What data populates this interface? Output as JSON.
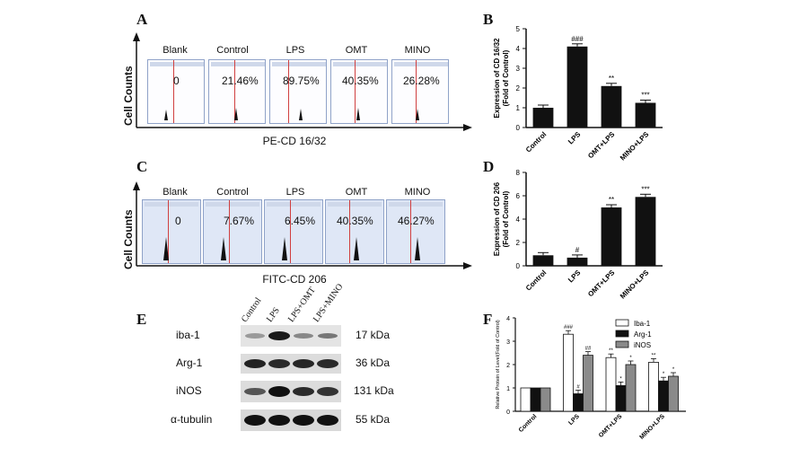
{
  "figure": {
    "panels": {
      "A": "A",
      "B": "B",
      "C": "C",
      "D": "D",
      "E": "E",
      "F": "F"
    },
    "flow_A": {
      "y_title": "Cell Counts",
      "x_title": "PE-CD 16/32",
      "groups": [
        "Blank",
        "Control",
        "LPS",
        "OMT",
        "MINO"
      ],
      "percents": [
        "0",
        "21.46%",
        "89.75%",
        "40.35%",
        "26.28%"
      ]
    },
    "flow_C": {
      "y_title": "Cell Counts",
      "x_title": "FITC-CD 206",
      "groups": [
        "Blank",
        "Control",
        "LPS",
        "OMT",
        "MINO"
      ],
      "percents": [
        "0",
        "7.67%",
        "6.45%",
        "40.35%",
        "46.27%"
      ]
    },
    "blot_E": {
      "lanes": [
        "Control",
        "LPS",
        "LPS+OMT",
        "LPS+MINO"
      ],
      "rows": [
        {
          "protein": "iba-1",
          "kda": "17 kDa"
        },
        {
          "protein": "Arg-1",
          "kda": "36 kDa"
        },
        {
          "protein": "iNOS",
          "kda": "131 kDa"
        },
        {
          "protein": "α-tubulin",
          "kda": "55  kDa"
        }
      ]
    }
  },
  "chart_data": [
    {
      "panel": "B",
      "type": "bar",
      "categories": [
        "Control",
        "LPS",
        "OMT+LPS",
        "MINO+LPS"
      ],
      "values": [
        1.0,
        4.1,
        2.1,
        1.25
      ],
      "annotations": [
        "",
        "###",
        "**",
        "***"
      ],
      "ylabel": "Expression of CD 16/32\n(Fold of Control)",
      "ylabel_lines": [
        "Expression of CD 16/32",
        "(Fold of Control)"
      ],
      "ylim": [
        0,
        5
      ],
      "yticks": [
        "0",
        "1",
        "2",
        "3",
        "4",
        "5"
      ]
    },
    {
      "panel": "D",
      "type": "bar",
      "categories": [
        "Control",
        "LPS",
        "OMT+LPS",
        "MINO+LPS"
      ],
      "values": [
        0.9,
        0.7,
        5.0,
        5.9
      ],
      "annotations": [
        "",
        "#",
        "**",
        "***"
      ],
      "ylabel_lines": [
        "Expression of CD 206",
        "(Fold of Control)"
      ],
      "ylim": [
        0,
        8
      ],
      "yticks": [
        "0",
        "2",
        "4",
        "6",
        "8"
      ]
    },
    {
      "panel": "F",
      "type": "bar",
      "categories": [
        "Control",
        "LPS",
        "OMT+LPS",
        "MINO+LPS"
      ],
      "series": [
        {
          "name": "Iba-1",
          "color": "#ffffff",
          "values": [
            1.0,
            3.3,
            2.3,
            2.1
          ],
          "annotations": [
            "",
            "###",
            "**",
            "**"
          ]
        },
        {
          "name": "Arg-1",
          "color": "#111111",
          "values": [
            1.0,
            0.75,
            1.1,
            1.3
          ],
          "annotations": [
            "",
            "#",
            "*",
            "*"
          ]
        },
        {
          "name": "iNOS",
          "color": "#8a8a8a",
          "values": [
            1.0,
            2.4,
            2.0,
            1.5
          ],
          "annotations": [
            "",
            "##",
            "*",
            "*"
          ]
        }
      ],
      "ylabel": "Relative Protein of Level(Fold of Control)",
      "ylim": [
        0,
        4
      ],
      "yticks": [
        "0",
        "1",
        "2",
        "3",
        "4"
      ]
    }
  ]
}
